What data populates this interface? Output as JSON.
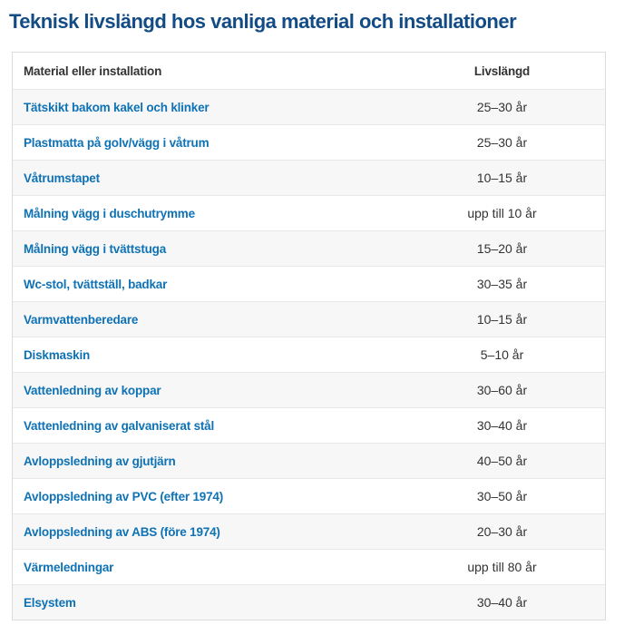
{
  "page": {
    "title": "Teknisk livslängd hos vanliga material och installationer"
  },
  "table": {
    "headers": [
      "Material eller installation",
      "Livslängd"
    ],
    "rows": [
      {
        "material": "Tätskikt bakom kakel och klinker",
        "lifespan": "25–30 år"
      },
      {
        "material": "Plastmatta på golv/vägg i våtrum",
        "lifespan": "25–30 år"
      },
      {
        "material": "Våtrumstapet",
        "lifespan": "10–15 år"
      },
      {
        "material": "Målning vägg i duschutrymme",
        "lifespan": "upp till 10 år"
      },
      {
        "material": "Målning vägg i tvättstuga",
        "lifespan": "15–20 år"
      },
      {
        "material": "Wc-stol, tvättställ, badkar",
        "lifespan": "30–35 år"
      },
      {
        "material": "Varmvattenberedare",
        "lifespan": "10–15 år"
      },
      {
        "material": "Diskmaskin",
        "lifespan": "5–10 år"
      },
      {
        "material": "Vattenledning av koppar",
        "lifespan": "30–60 år"
      },
      {
        "material": "Vattenledning av galvaniserat stål",
        "lifespan": "30–40 år"
      },
      {
        "material": "Avloppsledning av gjutjärn",
        "lifespan": "40–50 år"
      },
      {
        "material": "Avloppsledning av PVC (efter 1974)",
        "lifespan": "30–50 år"
      },
      {
        "material": "Avloppsledning av ABS (före 1974)",
        "lifespan": "20–30 år"
      },
      {
        "material": "Värmeledningar",
        "lifespan": "upp till 80 år"
      },
      {
        "material": "Elsystem",
        "lifespan": "30–40 år"
      }
    ]
  },
  "colors": {
    "title_text": "#134C85",
    "material_text": "#0E72B5",
    "value_text": "#333333",
    "alt_row_bg": "#F7F7F7",
    "table_border": "#DCDCDC",
    "row_divider": "#E8E8E8"
  }
}
